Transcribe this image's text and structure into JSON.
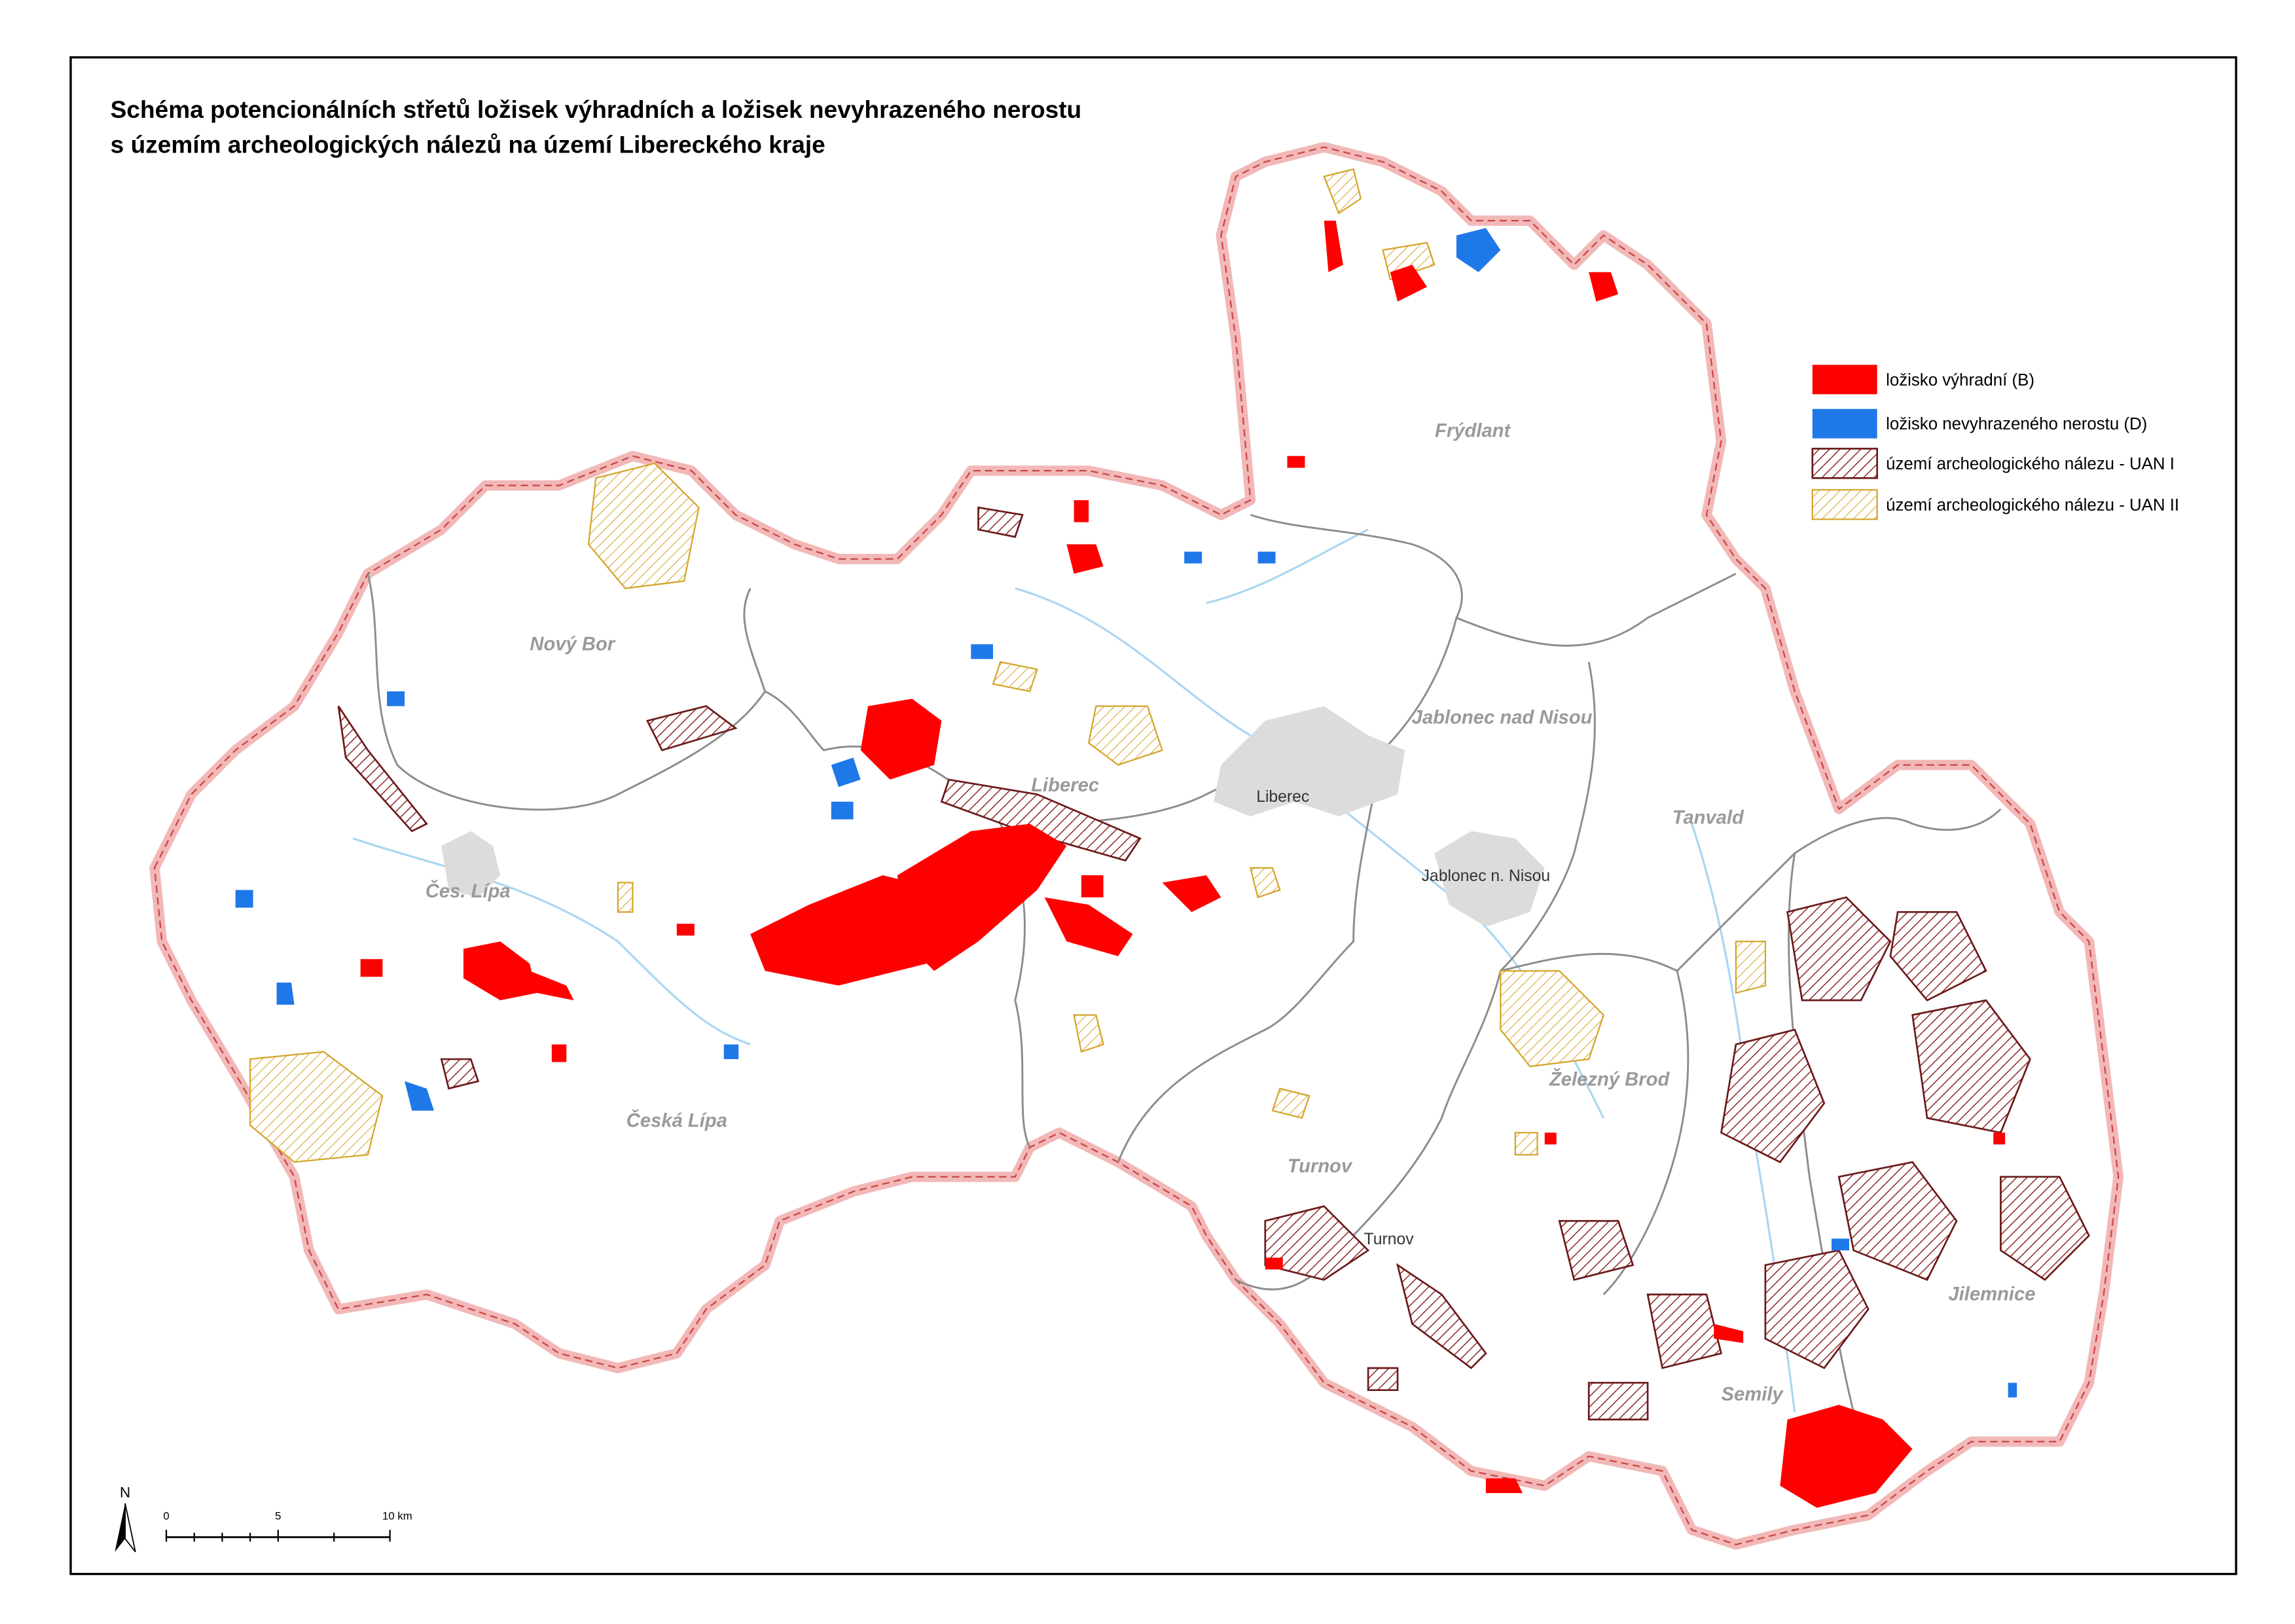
{
  "title": [
    "Schéma potencionálních střetů ložisek výhradních a ložisek nevyhrazeného nerostu",
    "s územím archeologických nálezů na území Libereckého kraje"
  ],
  "legend": [
    {
      "label": "ložisko výhradní (B)"
    },
    {
      "label": "ložisko nevyhrazeného nerostu (D)"
    },
    {
      "label": "území archeologického nálezu - UAN I"
    },
    {
      "label": "území archeologického nálezu - UAN II"
    }
  ],
  "places": [
    "Nový Bor",
    "Čes. Lípa",
    "Česká Lípa",
    "Liberec",
    "Liberec",
    "Frýdlant",
    "Jablonec nad Nisou",
    "Jablonec n. Nisou",
    "Tanvald",
    "Železný Brod",
    "Turnov",
    "Turnov",
    "Semily",
    "Jilemnice"
  ],
  "north": "N",
  "scale_bar": [
    "0",
    "5",
    "10 km"
  ]
}
